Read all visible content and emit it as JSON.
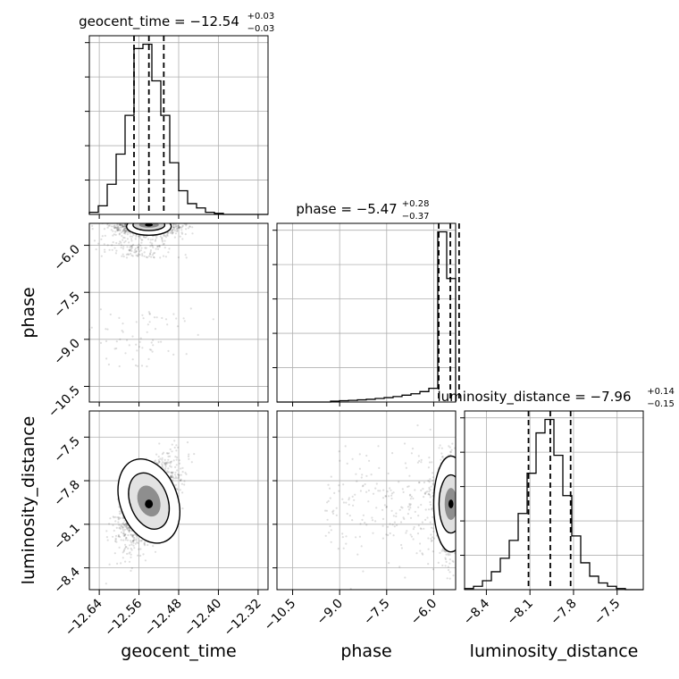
{
  "chart_data": {
    "type": "corner",
    "parameters": [
      "geocent_time",
      "phase",
      "luminosity_distance"
    ],
    "axis_labels": {
      "geocent_time": "geocent_time",
      "phase": "phase",
      "luminosity_distance": "luminosity_distance"
    },
    "titles": [
      {
        "param": "geocent_time",
        "text": "geocent_time = −12.54",
        "plus": "+0.03",
        "minus": "−0.03"
      },
      {
        "param": "phase",
        "text": "phase = −5.47",
        "plus": "+0.28",
        "minus": "−0.37"
      },
      {
        "param": "luminosity_distance",
        "text": "luminosity_distance = −7.96",
        "plus": "+0.14",
        "minus": "−0.15"
      }
    ],
    "ranges": {
      "geocent_time": [
        -12.66,
        -12.3
      ],
      "phase": [
        -11.0,
        -5.3
      ],
      "luminosity_distance": [
        -8.55,
        -7.32
      ]
    },
    "ticks": {
      "geocent_time": {
        "values": [
          -12.64,
          -12.56,
          -12.48,
          -12.4,
          -12.32
        ],
        "labels": [
          "−12.64",
          "−12.56",
          "−12.48",
          "−12.40",
          "−12.32"
        ]
      },
      "phase": {
        "values": [
          -10.5,
          -9.0,
          -7.5,
          -6.0
        ],
        "labels": [
          "−10.5",
          "−9.0",
          "−7.5",
          "−6.0"
        ]
      },
      "luminosity_distance": {
        "values": [
          -8.4,
          -8.1,
          -7.8,
          -7.5
        ],
        "labels": [
          "−8.4",
          "−8.1",
          "−7.8",
          "−7.5"
        ]
      }
    },
    "quantiles": {
      "geocent_time": [
        -12.57,
        -12.54,
        -12.51
      ],
      "phase": [
        -5.84,
        -5.47,
        -5.19
      ],
      "luminosity_distance": [
        -8.11,
        -7.96,
        -7.82
      ]
    },
    "histograms": {
      "geocent_time": {
        "edges": [
          -12.66,
          -12.642,
          -12.624,
          -12.606,
          -12.588,
          -12.57,
          -12.552,
          -12.534,
          -12.516,
          -12.498,
          -12.48,
          -12.462,
          -12.444,
          -12.426,
          -12.408,
          -12.39,
          -12.372,
          -12.354,
          -12.336,
          -12.318,
          -12.3
        ],
        "counts": [
          1,
          4,
          14,
          28,
          46,
          77,
          79,
          62,
          46,
          24,
          11,
          5,
          3,
          1,
          0.5,
          0,
          0,
          0,
          0,
          0
        ]
      },
      "phase": {
        "edges": [
          -11.0,
          -10.715,
          -10.43,
          -10.145,
          -9.86,
          -9.575,
          -9.29,
          -9.005,
          -8.72,
          -8.435,
          -8.15,
          -7.865,
          -7.58,
          -7.295,
          -7.01,
          -6.725,
          -6.44,
          -6.155,
          -5.87,
          -5.585,
          -5.3
        ],
        "counts": [
          0,
          0,
          0,
          0,
          0,
          0,
          0.3,
          0.5,
          0.6,
          0.8,
          1.0,
          1.3,
          1.6,
          2.0,
          2.5,
          3.0,
          3.8,
          5.0,
          62,
          45
        ]
      },
      "luminosity_distance": {
        "edges": [
          -8.55,
          -8.4885,
          -8.427,
          -8.3655,
          -8.304,
          -8.2425,
          -8.181,
          -8.1195,
          -8.058,
          -7.9965,
          -7.935,
          -7.8735,
          -7.812,
          -7.7505,
          -7.689,
          -7.6275,
          -7.566,
          -7.5045,
          -7.443,
          -7.3815,
          -7.32
        ],
        "counts": [
          0.5,
          1.5,
          4,
          8,
          14,
          22,
          34,
          52,
          70,
          76,
          60,
          42,
          24,
          12,
          6,
          3,
          1.5,
          0.5,
          0,
          0
        ]
      }
    },
    "scatter_style": "grey points with 2D-density contours and filled grey shading",
    "grid": true
  }
}
